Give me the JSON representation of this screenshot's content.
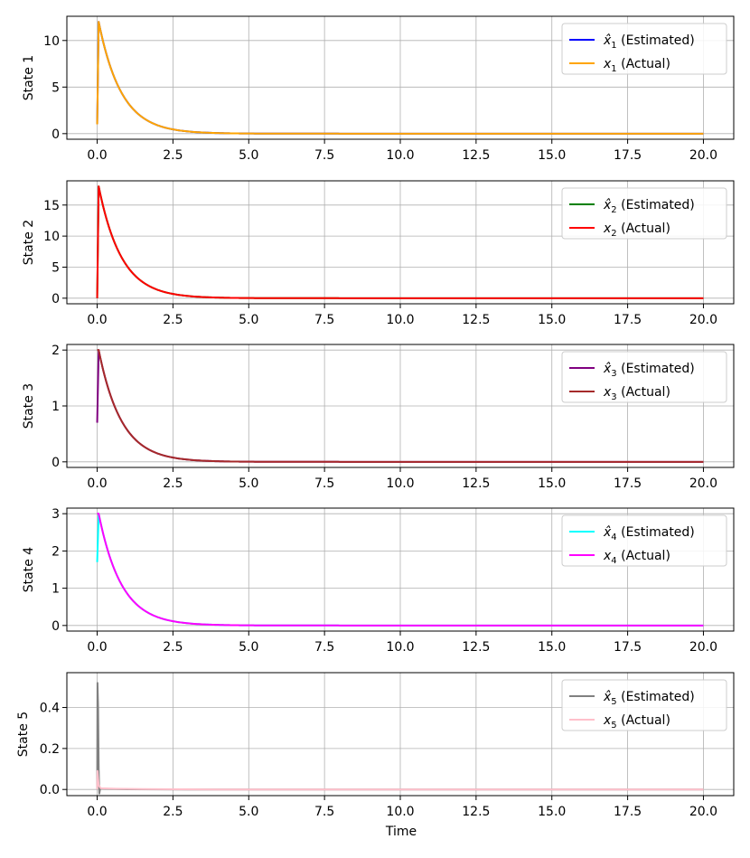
{
  "figure": {
    "xlabel": "Time"
  },
  "chart_data": [
    {
      "type": "line",
      "ylabel": "State 1",
      "xlim": [
        -1.0,
        21.0
      ],
      "ylim": [
        -0.6,
        12.6
      ],
      "xticks": [
        0,
        2.5,
        5,
        7.5,
        10,
        12.5,
        15,
        17.5,
        20
      ],
      "xtick_labels": [
        "0.0",
        "2.5",
        "5.0",
        "7.5",
        "10.0",
        "12.5",
        "15.0",
        "17.5",
        "20.0"
      ],
      "yticks": [
        0,
        5,
        10
      ],
      "ytick_labels": [
        "0",
        "5",
        "10"
      ],
      "grid": true,
      "legend_position": "top-right",
      "series": [
        {
          "name": "x̂1 (Estimated)",
          "sym": "x̂",
          "sub": "1",
          "desc": "(Estimated)",
          "color": "#0000ff",
          "start": 1.0,
          "peak": 12.0,
          "tau": 0.75
        },
        {
          "name": "x1 (Actual)",
          "sym": "x",
          "sub": "1",
          "desc": "(Actual)",
          "color": "#ffa500",
          "start": 1.0,
          "peak": 12.0,
          "tau": 0.75
        }
      ]
    },
    {
      "type": "line",
      "ylabel": "State 2",
      "xlim": [
        -1.0,
        21.0
      ],
      "ylim": [
        -0.9,
        18.9
      ],
      "xticks": [
        0,
        2.5,
        5,
        7.5,
        10,
        12.5,
        15,
        17.5,
        20
      ],
      "xtick_labels": [
        "0.0",
        "2.5",
        "5.0",
        "7.5",
        "10.0",
        "12.5",
        "15.0",
        "17.5",
        "20.0"
      ],
      "yticks": [
        0,
        5,
        10,
        15
      ],
      "ytick_labels": [
        "0",
        "5",
        "10",
        "15"
      ],
      "grid": true,
      "legend_position": "top-right",
      "series": [
        {
          "name": "x̂2 (Estimated)",
          "sym": "x̂",
          "sub": "2",
          "desc": "(Estimated)",
          "color": "#008000",
          "start": 0.0,
          "peak": 18.0,
          "tau": 0.75
        },
        {
          "name": "x2 (Actual)",
          "sym": "x",
          "sub": "2",
          "desc": "(Actual)",
          "color": "#ff0000",
          "start": 0.0,
          "peak": 18.0,
          "tau": 0.75
        }
      ]
    },
    {
      "type": "line",
      "ylabel": "State 3",
      "xlim": [
        -1.0,
        21.0
      ],
      "ylim": [
        -0.1,
        2.1
      ],
      "xticks": [
        0,
        2.5,
        5,
        7.5,
        10,
        12.5,
        15,
        17.5,
        20
      ],
      "xtick_labels": [
        "0.0",
        "2.5",
        "5.0",
        "7.5",
        "10.0",
        "12.5",
        "15.0",
        "17.5",
        "20.0"
      ],
      "yticks": [
        0,
        1,
        2
      ],
      "ytick_labels": [
        "0",
        "1",
        "2"
      ],
      "grid": true,
      "legend_position": "top-right",
      "series": [
        {
          "name": "x̂3 (Estimated)",
          "sym": "x̂",
          "sub": "3",
          "desc": "(Estimated)",
          "color": "#800080",
          "start": 0.7,
          "peak": 2.0,
          "tau": 0.75
        },
        {
          "name": "x3 (Actual)",
          "sym": "x",
          "sub": "3",
          "desc": "(Actual)",
          "color": "#a52a2a",
          "start": 2.0,
          "peak": 2.0,
          "tau": 0.75
        }
      ]
    },
    {
      "type": "line",
      "ylabel": "State 4",
      "xlim": [
        -1.0,
        21.0
      ],
      "ylim": [
        -0.15,
        3.15
      ],
      "xticks": [
        0,
        2.5,
        5,
        7.5,
        10,
        12.5,
        15,
        17.5,
        20
      ],
      "xtick_labels": [
        "0.0",
        "2.5",
        "5.0",
        "7.5",
        "10.0",
        "12.5",
        "15.0",
        "17.5",
        "20.0"
      ],
      "yticks": [
        0,
        1,
        2,
        3
      ],
      "ytick_labels": [
        "0",
        "1",
        "2",
        "3"
      ],
      "grid": true,
      "legend_position": "top-right",
      "series": [
        {
          "name": "x̂4 (Estimated)",
          "sym": "x̂",
          "sub": "4",
          "desc": "(Estimated)",
          "color": "#00ffff",
          "start": 1.7,
          "peak": 3.0,
          "tau": 0.75
        },
        {
          "name": "x4 (Actual)",
          "sym": "x",
          "sub": "4",
          "desc": "(Actual)",
          "color": "#ff00ff",
          "start": 3.0,
          "peak": 3.0,
          "tau": 0.75
        }
      ]
    },
    {
      "type": "line",
      "ylabel": "State 5",
      "xlim": [
        -1.0,
        21.0
      ],
      "ylim": [
        -0.03,
        0.57
      ],
      "xticks": [
        0,
        2.5,
        5,
        7.5,
        10,
        12.5,
        15,
        17.5,
        20
      ],
      "xtick_labels": [
        "0.0",
        "2.5",
        "5.0",
        "7.5",
        "10.0",
        "12.5",
        "15.0",
        "17.5",
        "20.0"
      ],
      "yticks": [
        0,
        0.2,
        0.4
      ],
      "ytick_labels": [
        "0.0",
        "0.2",
        "0.4"
      ],
      "grid": true,
      "legend_position": "top-right",
      "series": [
        {
          "name": "x̂5 (Estimated)",
          "sym": "x̂",
          "sub": "5",
          "desc": "(Estimated)",
          "color": "#808080",
          "points": [
            [
              0,
              0.0
            ],
            [
              0.01,
              0.52
            ],
            [
              0.03,
              0.4
            ],
            [
              0.05,
              0.1
            ],
            [
              0.07,
              -0.02
            ],
            [
              0.1,
              0.005
            ],
            [
              0.3,
              0.003
            ],
            [
              1.0,
              0.001
            ],
            [
              3.0,
              0.0
            ],
            [
              20,
              0.0
            ]
          ]
        },
        {
          "name": "x5 (Actual)",
          "sym": "x",
          "sub": "5",
          "desc": "(Actual)",
          "color": "#ffc0cb",
          "points": [
            [
              0,
              0.0
            ],
            [
              0.01,
              0.09
            ],
            [
              0.05,
              0.02
            ],
            [
              0.12,
              0.006
            ],
            [
              0.5,
              0.004
            ],
            [
              1.5,
              0.002
            ],
            [
              4.0,
              0.0
            ],
            [
              20,
              0.0
            ]
          ]
        }
      ]
    }
  ]
}
